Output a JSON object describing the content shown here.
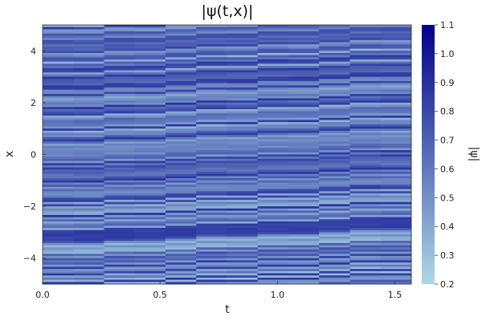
{
  "chart_data": {
    "type": "heatmap",
    "title": "|ψ(t,x)|",
    "xlabel": "t",
    "ylabel": "x",
    "xlim": [
      0.0,
      1.57
    ],
    "ylim": [
      -5,
      5
    ],
    "x_ticks": [
      {
        "value": 0.0,
        "label": "0.0"
      },
      {
        "value": 0.5,
        "label": "0.5"
      },
      {
        "value": 1.0,
        "label": "1.0"
      },
      {
        "value": 1.5,
        "label": "1.5"
      }
    ],
    "y_ticks": [
      {
        "value": -4,
        "label": "−4"
      },
      {
        "value": -2,
        "label": "−2"
      },
      {
        "value": 0,
        "label": "0"
      },
      {
        "value": 2,
        "label": "2"
      },
      {
        "value": 4,
        "label": "4"
      }
    ],
    "colorbar": {
      "label": "|ψ|",
      "range": [
        0.2,
        1.1
      ],
      "ticks": [
        {
          "value": 0.2,
          "label": "0.2"
        },
        {
          "value": 0.3,
          "label": "0.3"
        },
        {
          "value": 0.4,
          "label": "0.4"
        },
        {
          "value": 0.5,
          "label": "0.5"
        },
        {
          "value": 0.6,
          "label": "0.6"
        },
        {
          "value": 0.7,
          "label": "0.7"
        },
        {
          "value": 0.8,
          "label": "0.8"
        },
        {
          "value": 0.9,
          "label": "0.9"
        },
        {
          "value": 1.0,
          "label": "1.0"
        },
        {
          "value": 1.1,
          "label": "1.1"
        }
      ],
      "color_low": "#add8e6",
      "color_high": "#00008b"
    },
    "grid": false,
    "pattern": {
      "description_values": "|ψ| varies mostly with x in narrow stripes, drifting slightly with t",
      "x_start": -5,
      "x_end": 5,
      "mean_level": 0.62,
      "stripe_count": 120
    }
  }
}
